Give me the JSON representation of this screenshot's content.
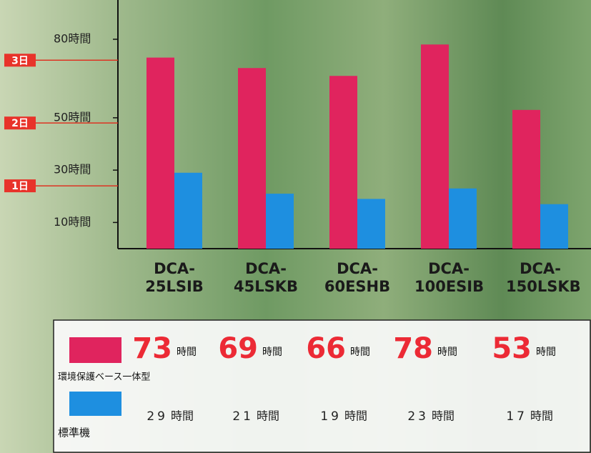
{
  "chart_data": {
    "type": "bar",
    "categories": [
      "DCA-25LSIB",
      "DCA-45LSKB",
      "DCA-60ESHB",
      "DCA-100ESIB",
      "DCA-150LSKB"
    ],
    "series": [
      {
        "name": "環境保護ベース一体型",
        "color": "#e0245e",
        "values": [
          73,
          69,
          66,
          78,
          53
        ]
      },
      {
        "name": "標準機",
        "color": "#1e8fe0",
        "values": [
          29,
          21,
          19,
          23,
          17
        ]
      }
    ],
    "unit": "時間",
    "ylim": [
      0,
      95
    ],
    "yticks": [
      {
        "value": 10,
        "label": "10時間"
      },
      {
        "value": 30,
        "label": "30時間"
      },
      {
        "value": 50,
        "label": "50時間"
      },
      {
        "value": 80,
        "label": "80時間"
      }
    ],
    "day_markers": [
      {
        "value": 24,
        "label": "1日"
      },
      {
        "value": 48,
        "label": "2日"
      },
      {
        "value": 72,
        "label": "3日"
      }
    ]
  }
}
